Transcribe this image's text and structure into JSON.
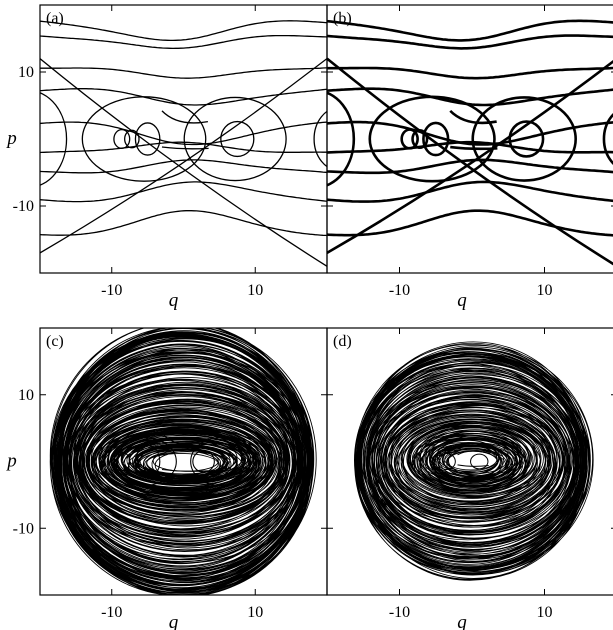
{
  "chart_data": [
    {
      "panel_label": "(a)",
      "type": "line",
      "xlabel": "q",
      "ylabel": "p",
      "xticks": [
        -10,
        10
      ],
      "yticks": [
        10,
        -10
      ],
      "xlim": [
        -20,
        20
      ],
      "ylim": [
        -20,
        20
      ],
      "grid": false,
      "legend": "none",
      "series": [
        {
          "kind": "horizontal-band",
          "amp": 6,
          "values": [
            17.5,
            15.8,
            11.2,
            7.6,
            2.2,
            -2.6,
            -5.4,
            -9.2,
            -13.9
          ]
        },
        {
          "kind": "diagonal",
          "values": [
            [
              -20,
              -17,
              20,
              12
            ],
            [
              -20,
              12,
              20,
              -19
            ]
          ]
        },
        {
          "kind": "loop",
          "values": [
            [
              -8.6,
              0,
              1.1,
              1.4
            ],
            [
              -7.2,
              0,
              1.0,
              1.3
            ],
            [
              -5.0,
              0,
              1.7,
              2.4
            ],
            [
              7.5,
              0,
              2.3,
              2.6
            ],
            [
              -5.5,
              0,
              8.6,
              6.3
            ],
            [
              7.2,
              0,
              7.1,
              6.2
            ],
            [
              -21.5,
              0,
              5.2,
              7.2
            ],
            [
              21.7,
              0,
              3.5,
              4.7
            ]
          ]
        },
        {
          "kind": "core",
          "values": [
            [
              -3.0,
              4.2,
              -0.8,
              1.8,
              3.4,
              2.6
            ],
            [
              -3.0,
              -1.2,
              0.0,
              -1.6,
              3.5,
              -1.4
            ]
          ]
        }
      ]
    },
    {
      "panel_label": "(b)",
      "type": "line",
      "xlabel": "q",
      "ylabel": "",
      "xticks": [
        -10,
        10
      ],
      "yticks": [
        10,
        -10
      ],
      "xlim": [
        -20,
        20
      ],
      "ylim": [
        -20,
        20
      ],
      "grid": false,
      "legend": "none",
      "series": [
        {
          "kind": "horizontal-band",
          "amp": 6,
          "values": [
            17.5,
            15.8,
            11.2,
            7.6,
            2.2,
            -2.6,
            -5.4,
            -9.2,
            -13.9
          ]
        },
        {
          "kind": "diagonal",
          "values": [
            [
              -20,
              -17,
              20,
              12
            ],
            [
              -20,
              12,
              20,
              -19
            ]
          ]
        },
        {
          "kind": "loop",
          "values": [
            [
              -8.6,
              0,
              1.1,
              1.4
            ],
            [
              -7.2,
              0,
              1.0,
              1.3
            ],
            [
              -5.0,
              0,
              1.7,
              2.4
            ],
            [
              7.5,
              0,
              2.3,
              2.6
            ],
            [
              -5.5,
              0,
              8.6,
              6.3
            ],
            [
              7.2,
              0,
              7.1,
              6.2
            ],
            [
              -21.5,
              0,
              5.2,
              7.2
            ],
            [
              21.7,
              0,
              3.5,
              4.7
            ]
          ]
        },
        {
          "kind": "core",
          "values": [
            [
              -3.0,
              4.2,
              -0.8,
              1.8,
              3.4,
              2.6
            ],
            [
              -3.0,
              -1.2,
              0.0,
              -1.6,
              3.5,
              -1.4
            ]
          ]
        }
      ]
    },
    {
      "panel_label": "(c)",
      "type": "line",
      "xlabel": "q",
      "ylabel": "p",
      "xticks": [
        -10,
        10
      ],
      "yticks": [
        10,
        -10
      ],
      "xlim": [
        -20,
        20
      ],
      "ylim": [
        -20,
        20
      ],
      "grid": false,
      "legend": "none",
      "series": [
        {
          "kind": "dense-rings",
          "values": [
            [
              0,
              0,
              8,
              3
            ],
            [
              0,
              0,
              10,
              4.5
            ],
            [
              0,
              0,
              12,
              6
            ],
            [
              0,
              0,
              14,
              9
            ],
            [
              0,
              0,
              15.5,
              12
            ],
            [
              0,
              0,
              16.5,
              16
            ],
            [
              0,
              0,
              17.5,
              18.5
            ],
            [
              0,
              0,
              18,
              20
            ]
          ]
        },
        {
          "kind": "loop",
          "values": [
            [
              -8.6,
              0,
              1.1,
              1.4
            ],
            [
              -5.0,
              0,
              1.7,
              2.4
            ],
            [
              2.8,
              0,
              1.5,
              1.6
            ],
            [
              -5.5,
              0,
              4.5,
              3.6
            ],
            [
              5.2,
              0,
              4.2,
              3.6
            ]
          ]
        },
        {
          "kind": "core",
          "values": [
            [
              -3.0,
              4.2,
              -0.8,
              1.8,
              3.4,
              2.6
            ],
            [
              -3.0,
              -1.2,
              0.0,
              -1.6,
              3.5,
              -1.4
            ]
          ]
        }
      ]
    },
    {
      "panel_label": "(d)",
      "type": "line",
      "xlabel": "q",
      "ylabel": "",
      "xticks": [
        -10,
        10
      ],
      "yticks": [
        10,
        -10
      ],
      "xlim": [
        -20,
        20
      ],
      "ylim": [
        -20,
        20
      ],
      "grid": false,
      "legend": "none",
      "series": [
        {
          "kind": "dense-rings",
          "values": [
            [
              0,
              0,
              6,
              3.2
            ],
            [
              0,
              0,
              8,
              4.5
            ],
            [
              0,
              0,
              11,
              7
            ],
            [
              0,
              0,
              13,
              10
            ],
            [
              0,
              0,
              14.5,
              13
            ],
            [
              0,
              0,
              15.5,
              15.5
            ],
            [
              0,
              0,
              16,
              17.5
            ]
          ]
        },
        {
          "kind": "loop",
          "values": [
            [
              -3.5,
              0,
              1.2,
              1.2
            ],
            [
              1.0,
              0,
              1.2,
              1.1
            ],
            [
              0,
              0,
              3.5,
              1.6
            ],
            [
              0,
              0,
              5.5,
              2.2
            ]
          ]
        },
        {
          "kind": "core",
          "values": [
            [
              -2.0,
              1.0,
              -0.4,
              2.0,
              2.5,
              1.2
            ],
            [
              -2.0,
              -0.5,
              0.0,
              -0.9,
              2.3,
              -0.6
            ]
          ]
        }
      ]
    }
  ]
}
